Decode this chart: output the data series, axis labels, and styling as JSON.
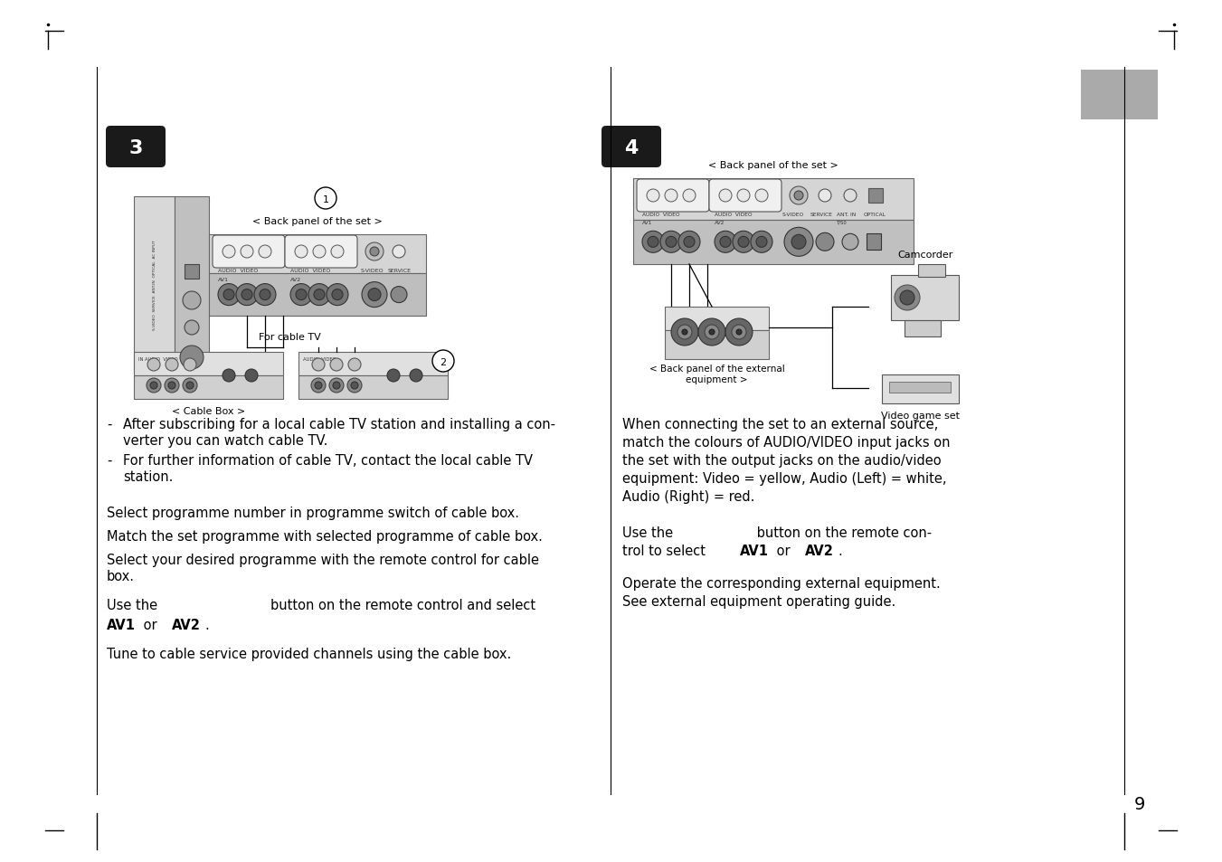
{
  "bg_color": "#ffffff",
  "page_num": "9",
  "section3_label": "3",
  "section4_label": "4",
  "back_panel_label3": "< Back panel of the set >",
  "back_panel_label4": "< Back panel of the set >",
  "cable_box_label": "< Cable Box >",
  "for_cable_tv_label": "For cable TV",
  "back_panel_ext_label": "< Back panel of the external\nequipment >",
  "camcorder_label": "Camcorder",
  "video_game_label": "Video game set",
  "s3_bullet1_line1": "After subscribing for a local cable TV station and installing a con-",
  "s3_bullet1_line2": "verter you can watch cable TV.",
  "s3_bullet2_line1": "For further information of cable TV, contact the local cable TV",
  "s3_bullet2_line2": "station.",
  "s3_para1": "Select programme number in programme switch of cable box.",
  "s3_para2": "Match the set programme with selected programme of cable box.",
  "s3_para3a": "Select your desired programme with the remote control for cable",
  "s3_para3b": "box.",
  "s3_use_line": "Use the                           button on the remote control and select",
  "s3_tune": "Tune to cable service provided channels using the cable box.",
  "s4_when1": "When connecting the set to an external source,",
  "s4_when2": "match the colours of AUDIO/VIDEO input jacks on",
  "s4_when3": "the set with the output jacks on the audio/video",
  "s4_when4": "equipment: Video = yellow, Audio (Left) = white,",
  "s4_when5": "Audio (Right) = red.",
  "s4_use_line1": "Use the                    button on the remote con-",
  "s4_use_line2": "trol to select ",
  "s4_operate1": "Operate the corresponding external equipment.",
  "s4_operate2": "See external equipment operating guide.",
  "gray_tab_color": "#aaaaaa",
  "panel_color": "#d0d0d0",
  "panel_color2": "#c8c8c8",
  "light_gray": "#e5e5e5",
  "connector_dark": "#555555",
  "connector_mid": "#888888"
}
